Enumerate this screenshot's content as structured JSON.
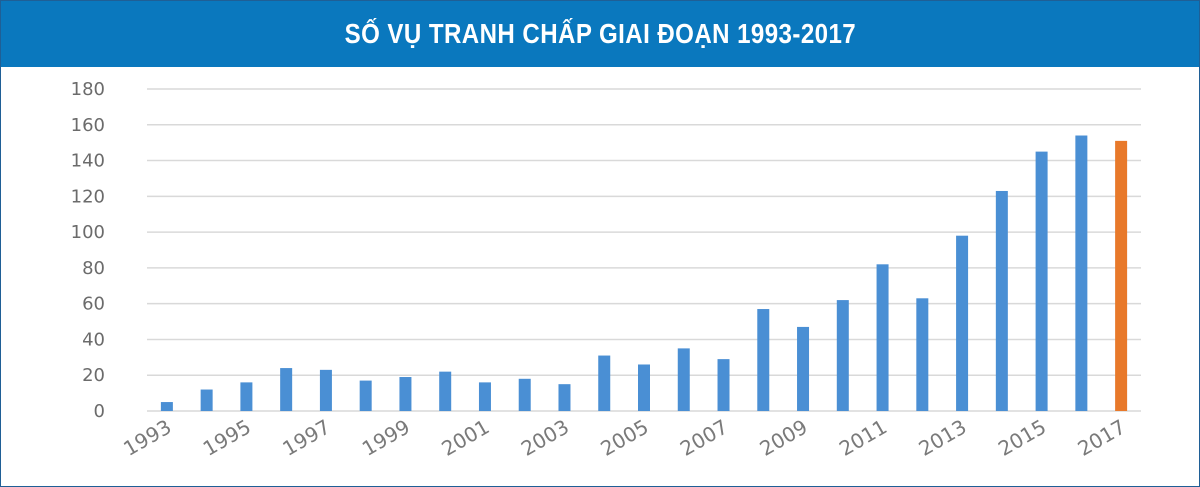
{
  "header": {
    "title": "SỐ VỤ TRANH CHẤP GIAI ĐOẠN 1993-2017"
  },
  "chart_data": {
    "type": "bar",
    "title": "SỐ VỤ TRANH CHẤP GIAI ĐOẠN 1993-2017",
    "xlabel": "",
    "ylabel": "",
    "ylim": [
      0,
      180
    ],
    "yticks": [
      "0",
      "20",
      "40",
      "60",
      "80",
      "100",
      "120",
      "140",
      "160",
      "180"
    ],
    "grid": true,
    "categories": [
      "1993",
      "1994",
      "1995",
      "1996",
      "1997",
      "1998",
      "1999",
      "2000",
      "2001",
      "2002",
      "2003",
      "2004",
      "2005",
      "2006",
      "2007",
      "2008",
      "2009",
      "2010",
      "2011",
      "2012",
      "2013",
      "2014",
      "2015",
      "2016",
      "2017"
    ],
    "xtick_labels": [
      "1993",
      "1995",
      "1997",
      "1999",
      "2001",
      "2003",
      "2005",
      "2007",
      "2009",
      "2011",
      "2013",
      "2015",
      "2017"
    ],
    "values": [
      5,
      12,
      16,
      24,
      23,
      17,
      19,
      22,
      16,
      18,
      15,
      31,
      26,
      35,
      29,
      57,
      47,
      62,
      82,
      63,
      98,
      123,
      145,
      154,
      151
    ],
    "colors": {
      "bar": "#4a8fd4",
      "highlight": "#e8792a",
      "grid": "#d9d9d9",
      "axis_text": "#6b6b6b"
    },
    "highlight_category": "2017"
  }
}
